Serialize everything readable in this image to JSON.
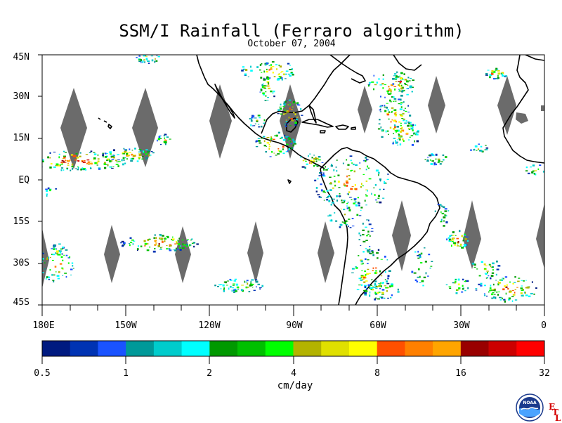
{
  "title": "SSM/I Rainfall (Ferraro algorithm)",
  "date": "October 07, 2004",
  "map": {
    "lat_labels": [
      "45N",
      "30N",
      "15N",
      "EQ",
      "15S",
      "30S",
      "45S"
    ],
    "lon_labels": [
      "180E",
      "150W",
      "120W",
      "90W",
      "60W",
      "30W",
      "0"
    ],
    "extent": {
      "lon": [
        -180,
        0
      ],
      "lat": [
        -45,
        45
      ]
    },
    "gap_color": "#6b6b6b",
    "coastline_color": "#000000"
  },
  "colorbar": {
    "colors": [
      "#001a80",
      "#0033b3",
      "#1a53ff",
      "#009999",
      "#00cccc",
      "#00ffff",
      "#009900",
      "#00c000",
      "#00ff00",
      "#b3b300",
      "#e0e000",
      "#ffff00",
      "#ff5000",
      "#ff8000",
      "#ffa500",
      "#990000",
      "#cc0000",
      "#ff0000"
    ],
    "tick_labels": [
      "0.5",
      "1",
      "2",
      "4",
      "8",
      "16",
      "32"
    ],
    "units": "cm/day"
  },
  "logo": {
    "text": "NOAA",
    "letters": [
      "E",
      "T",
      "L"
    ]
  }
}
